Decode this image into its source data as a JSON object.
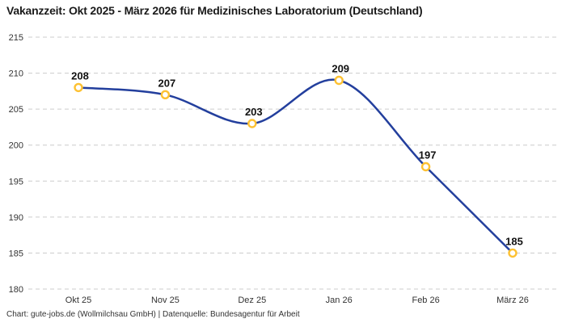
{
  "chart_data": {
    "type": "line",
    "title": "Vakanzzeit: Okt 2025 - März 2026 für Medizinisches Laboratorium (Deutschland)",
    "categories": [
      "Okt 25",
      "Nov 25",
      "Dez 25",
      "Jan 26",
      "Feb 26",
      "März 26"
    ],
    "values": [
      208,
      207,
      203,
      209,
      197,
      185
    ],
    "xlabel": "",
    "ylabel": "",
    "ylim": [
      180,
      215
    ],
    "ytick_step": 5,
    "grid": "horizontal-dashed",
    "legend": "none",
    "line_style": "smooth",
    "colors": {
      "line": "#233f9d",
      "marker": "#fdc132",
      "marker_fill": "#ffffff",
      "grid": "#cccccc",
      "tick_label": "#333333",
      "value_label": "#111111"
    }
  },
  "footer": {
    "text": "Chart: gute-jobs.de (Wollmilchsau GmbH) | Datenquelle: Bundesagentur für Arbeit"
  }
}
